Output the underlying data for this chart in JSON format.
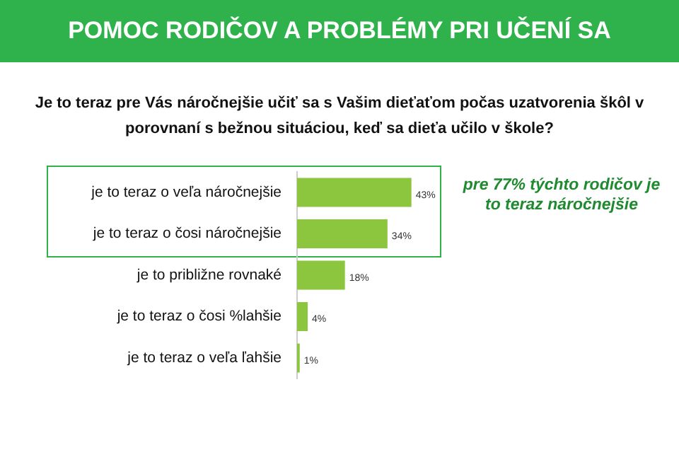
{
  "chart_data": {
    "type": "bar",
    "orientation": "horizontal",
    "title": "POMOC RODIČOV A PROBLÉMY PRI UČENÍ SA",
    "subtitle": "Je to teraz pre Vás náročnejšie učiť sa s Vašim dieťaťom počas uzatvorenia škôl v porovnaní s bežnou situáciou, keď sa dieťa učilo v škole?",
    "categories": [
      "je to teraz o veľa náročnejšie",
      "je to teraz o čosi náročnejšie",
      "je to približne rovnaké",
      "je to teraz o čosi %lahšie",
      "je to teraz o veľa ľahšie"
    ],
    "values": [
      43,
      34,
      18,
      4,
      1
    ],
    "value_labels": [
      "43%",
      "34%",
      "18%",
      "4%",
      "1%"
    ],
    "color": "#8cc63f",
    "tick_labels": "y",
    "legend": false,
    "annotations": [
      "pre 77% týchto rodičov je to teraz náročnejšie"
    ]
  }
}
